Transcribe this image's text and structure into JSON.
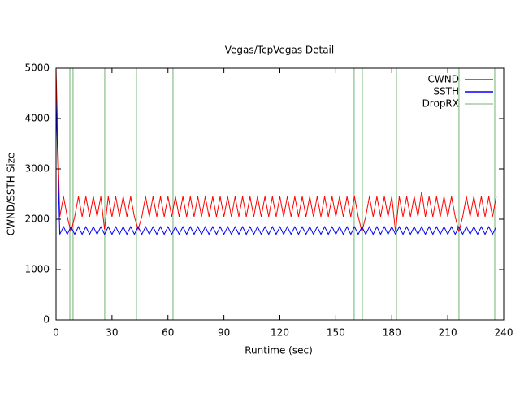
{
  "chart_data": {
    "type": "line",
    "title": "Vegas/TcpVegas Detail",
    "xlabel": "Runtime (sec)",
    "ylabel": "CWND/SSTH Size",
    "xlim": [
      0,
      240
    ],
    "xticks": [
      0,
      30,
      60,
      90,
      120,
      150,
      180,
      210,
      240
    ],
    "ylim": [
      0,
      5000
    ],
    "yticks": [
      0,
      1000,
      2000,
      3000,
      4000,
      5000
    ],
    "legend": "top-right",
    "x": [
      0,
      2,
      4,
      6,
      8,
      10,
      12,
      14,
      16,
      18,
      20,
      22,
      24,
      26,
      28,
      30,
      32,
      34,
      36,
      38,
      40,
      42,
      44,
      46,
      48,
      50,
      52,
      54,
      56,
      58,
      60,
      62,
      64,
      66,
      68,
      70,
      72,
      74,
      76,
      78,
      80,
      82,
      84,
      86,
      88,
      90,
      92,
      94,
      96,
      98,
      100,
      102,
      104,
      106,
      108,
      110,
      112,
      114,
      116,
      118,
      120,
      122,
      124,
      126,
      128,
      130,
      132,
      134,
      136,
      138,
      140,
      142,
      144,
      146,
      148,
      150,
      152,
      154,
      156,
      158,
      160,
      162,
      164,
      166,
      168,
      170,
      172,
      174,
      176,
      178,
      180,
      182,
      184,
      186,
      188,
      190,
      192,
      194,
      196,
      198,
      200,
      202,
      204,
      206,
      208,
      210,
      212,
      214,
      216,
      218,
      220,
      222,
      224,
      226,
      228,
      230,
      232,
      234,
      236
    ],
    "series": [
      {
        "name": "CWND",
        "color": "#ff0000",
        "values": [
          5000,
          2050,
          2450,
          2050,
          1750,
          2050,
          2450,
          2050,
          2450,
          2050,
          2450,
          2050,
          2450,
          1800,
          2450,
          2050,
          2450,
          2050,
          2450,
          2050,
          2450,
          2050,
          1800,
          2050,
          2450,
          2050,
          2450,
          2050,
          2450,
          2050,
          2450,
          2050,
          2450,
          2050,
          2450,
          2050,
          2450,
          2050,
          2450,
          2050,
          2450,
          2050,
          2450,
          2050,
          2450,
          2050,
          2450,
          2050,
          2450,
          2050,
          2450,
          2050,
          2450,
          2050,
          2450,
          2050,
          2450,
          2050,
          2450,
          2050,
          2450,
          2050,
          2450,
          2050,
          2450,
          2050,
          2450,
          2050,
          2450,
          2050,
          2450,
          2050,
          2450,
          2050,
          2450,
          2050,
          2450,
          2050,
          2450,
          2050,
          2450,
          2050,
          1750,
          2050,
          2450,
          2050,
          2450,
          2050,
          2450,
          2050,
          2450,
          1750,
          2450,
          2050,
          2450,
          2050,
          2450,
          2050,
          2550,
          2050,
          2450,
          2050,
          2450,
          2050,
          2450,
          2050,
          2450,
          2050,
          1750,
          2050,
          2450,
          2050,
          2450,
          2050,
          2450,
          2050,
          2450,
          2050,
          2450
        ]
      },
      {
        "name": "SSTH",
        "color": "#0000ff",
        "values": [
          4400,
          1700,
          1850,
          1700,
          1850,
          1700,
          1850,
          1700,
          1850,
          1700,
          1850,
          1700,
          1850,
          1700,
          1850,
          1700,
          1850,
          1700,
          1850,
          1700,
          1850,
          1700,
          1850,
          1700,
          1850,
          1700,
          1850,
          1700,
          1850,
          1700,
          1850,
          1700,
          1850,
          1700,
          1850,
          1700,
          1850,
          1700,
          1850,
          1700,
          1850,
          1700,
          1850,
          1700,
          1850,
          1700,
          1850,
          1700,
          1850,
          1700,
          1850,
          1700,
          1850,
          1700,
          1850,
          1700,
          1850,
          1700,
          1850,
          1700,
          1850,
          1700,
          1850,
          1700,
          1850,
          1700,
          1850,
          1700,
          1850,
          1700,
          1850,
          1700,
          1850,
          1700,
          1850,
          1700,
          1850,
          1700,
          1850,
          1700,
          1850,
          1700,
          1850,
          1700,
          1850,
          1700,
          1850,
          1700,
          1850,
          1700,
          1850,
          1700,
          1850,
          1700,
          1850,
          1700,
          1850,
          1700,
          1850,
          1700,
          1850,
          1700,
          1850,
          1700,
          1850,
          1700,
          1850,
          1700,
          1850,
          1700,
          1850,
          1700,
          1850,
          1700,
          1850,
          1700,
          1850,
          1700,
          1850
        ]
      }
    ],
    "vlines": {
      "name": "DropRX",
      "color": "#a0cca0",
      "x": [
        7.4,
        9.1,
        26.1,
        43.1,
        62.7,
        159.8,
        164.2,
        182.5,
        216.0,
        235.2
      ]
    }
  }
}
